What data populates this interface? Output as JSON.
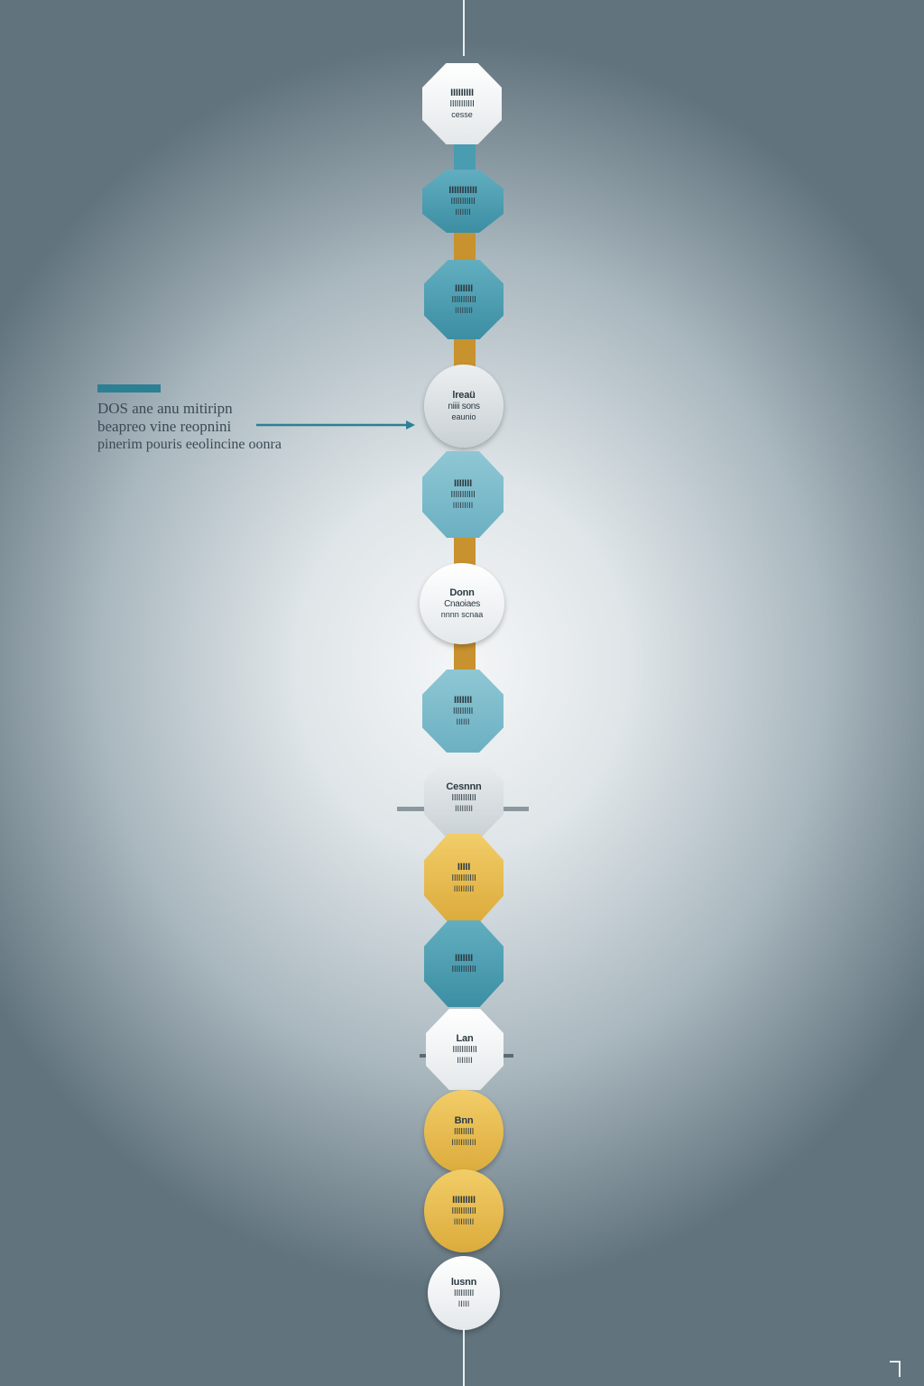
{
  "annotation": {
    "lines": [
      "DOS ane anu mitiripn",
      "beapreo vine reopnini",
      "pinerim pouris eeolincine oonra"
    ],
    "color": "#2d7f94"
  },
  "colors": {
    "teal": "#3c8ea3",
    "light_teal": "#6bb0c2",
    "grey": "#c9d0d4",
    "yellow": "#dcab3c",
    "connector_gold": "#c8922e"
  },
  "nodes": [
    {
      "color": "white",
      "lines": [
        "IIIIIIIII",
        "IIIIIIIIIII",
        "cesse"
      ]
    },
    {
      "color": "teal",
      "lines": [
        "IIIIIIIIIII",
        "IIIIIIIIIII",
        "IIIIIII"
      ]
    },
    {
      "color": "teal",
      "lines": [
        "IIIIIII",
        "IIIIIIIIIII",
        "IIIIIIII"
      ]
    },
    {
      "color": "grey",
      "lines": [
        "lreaü",
        "niiii sons",
        "eaunio"
      ]
    },
    {
      "color": "lightteal",
      "lines": [
        "IIIIIII",
        "IIIIIIIIIII",
        "IIIIIIIII"
      ]
    },
    {
      "color": "white",
      "lines": [
        "Donn",
        "Cnaoiaes",
        "nnnn scnaa"
      ]
    },
    {
      "color": "lightteal",
      "lines": [
        "IIIIIII",
        "IIIIIIIII",
        "IIIIII"
      ]
    },
    {
      "color": "grey",
      "lines": [
        "Cesnnn",
        "IIIIIIIIIII",
        "IIIIIIII"
      ]
    },
    {
      "color": "yellow",
      "lines": [
        "IIIII",
        "IIIIIIIIIII",
        "IIIIIIIII"
      ]
    },
    {
      "color": "teal",
      "lines": [
        "IIIIIII",
        "IIIIIIIIIII",
        ""
      ]
    },
    {
      "color": "white",
      "lines": [
        "Lan",
        "IIIIIIIIIII",
        "IIIIIII"
      ]
    },
    {
      "color": "yellow",
      "lines": [
        "Bnn",
        "IIIIIIIII",
        "IIIIIIIIIII"
      ]
    },
    {
      "color": "yellow",
      "lines": [
        "IIIIIIIII",
        "IIIIIIIIIII",
        "IIIIIIIII"
      ]
    },
    {
      "color": "white",
      "lines": [
        "lusnn",
        "IIIIIIIII",
        "IIIII"
      ]
    }
  ]
}
